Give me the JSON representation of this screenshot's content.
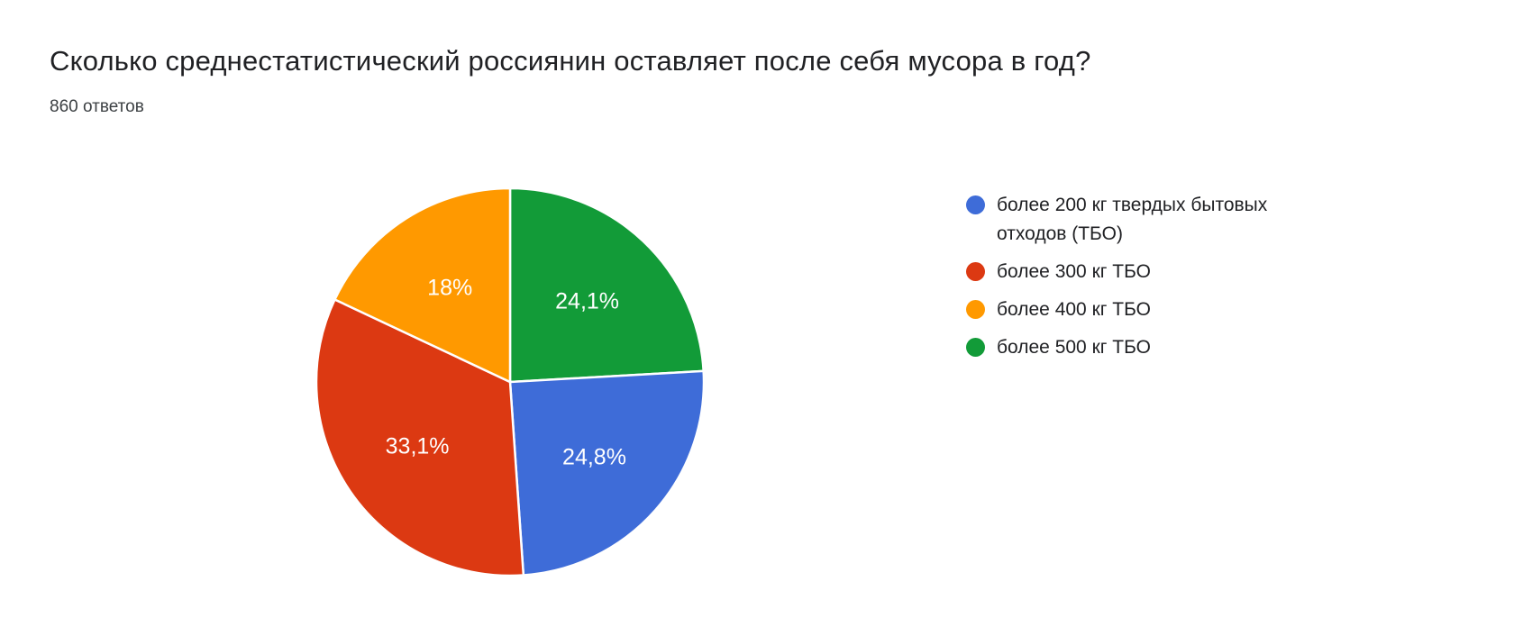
{
  "chart_data": {
    "type": "pie",
    "title": "Сколько среднестатистический россиянин оставляет после себя мусора в год?",
    "subtitle": "860 ответов",
    "slices": [
      {
        "label": "более 200 кг твердых бытовых отходов (ТБО)",
        "value": 24.8,
        "display": "24,8%",
        "color": "#3E6CD8"
      },
      {
        "label": "более 300 кг ТБО",
        "value": 33.1,
        "display": "33,1%",
        "color": "#DC3912"
      },
      {
        "label": "более 400 кг ТБО",
        "value": 18,
        "display": "18%",
        "color": "#FF9900"
      },
      {
        "label": "более 500 кг ТБО",
        "value": 24.1,
        "display": "24,1%",
        "color": "#129B38"
      }
    ],
    "draw_order": [
      3,
      0,
      1,
      2
    ],
    "rotation": "clockwise-from-top",
    "start_angle_deg": 0,
    "legend_position": "right",
    "slice_label_color": "#ffffff",
    "slice_border_color": "#ffffff",
    "background": "#ffffff"
  }
}
